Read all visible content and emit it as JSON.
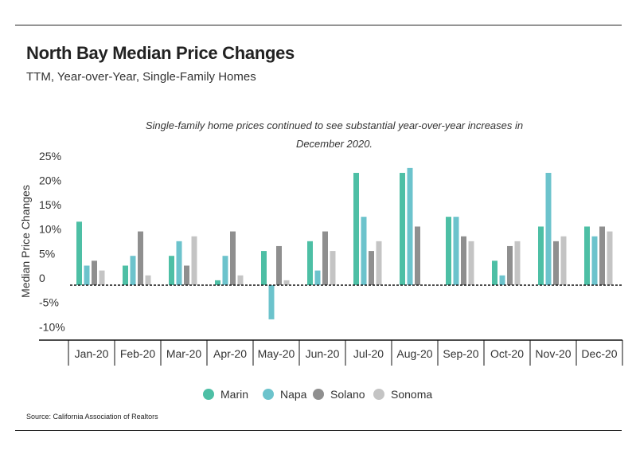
{
  "header": {
    "title": "North Bay Median Price Changes",
    "subtitle": "TTM, Year-over-Year, Single-Family Homes"
  },
  "annotation": "Single-family home prices continued to see substantial year-over-year increases in December 2020.",
  "footer": {
    "source": "Source:  California Association of Realtors"
  },
  "colors": {
    "Marin": "#4dbfa5",
    "Napa": "#6cc3cc",
    "Solano": "#8f8f8f",
    "Sonoma": "#c4c4c4"
  },
  "chart_data": {
    "type": "bar",
    "title": "North Bay Median Price Changes",
    "subtitle": "TTM, Year-over-Year, Single-Family Homes",
    "xlabel": "",
    "ylabel": "Median Price Changes",
    "ylim": [
      -12,
      25
    ],
    "yticks": [
      25,
      20,
      15,
      10,
      5,
      0,
      -5,
      -10
    ],
    "ytick_labels": [
      "25%",
      "20%",
      "15%",
      "10%",
      "5%",
      "0",
      "-5%",
      "-10%"
    ],
    "grid": false,
    "legend_position": "bottom",
    "categories": [
      "Jan-20",
      "Feb-20",
      "Mar-20",
      "Apr-20",
      "May-20",
      "Jun-20",
      "Jul-20",
      "Aug-20",
      "Sep-20",
      "Oct-20",
      "Nov-20",
      "Dec-20"
    ],
    "series": [
      {
        "name": "Marin",
        "values": [
          13,
          4,
          6,
          1,
          7,
          9,
          23,
          23,
          14,
          5,
          12,
          12
        ]
      },
      {
        "name": "Napa",
        "values": [
          4,
          6,
          9,
          6,
          -7,
          3,
          14,
          24,
          14,
          2,
          23,
          10
        ]
      },
      {
        "name": "Solano",
        "values": [
          5,
          11,
          4,
          11,
          8,
          11,
          7,
          12,
          10,
          8,
          9,
          12
        ]
      },
      {
        "name": "Sonoma",
        "values": [
          3,
          2,
          10,
          2,
          1,
          7,
          9,
          null,
          9,
          9,
          10,
          11
        ]
      }
    ]
  }
}
